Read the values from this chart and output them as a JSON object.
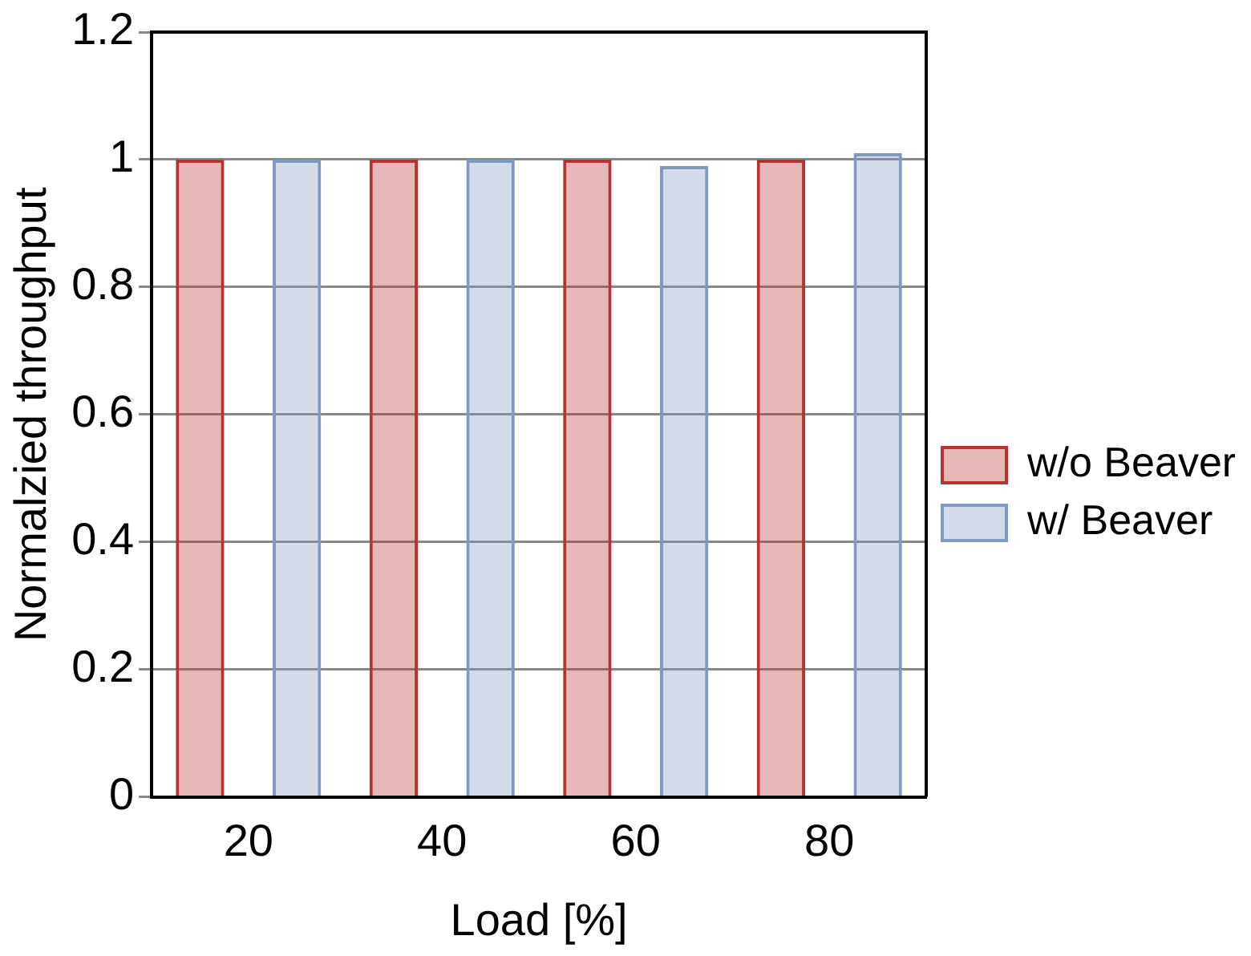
{
  "chart_data": {
    "type": "bar",
    "xlabel": "Load [%]",
    "ylabel": "Normalzied throughput",
    "categories": [
      "20",
      "40",
      "60",
      "80"
    ],
    "series": [
      {
        "name": "w/o Beaver",
        "color": "#b83232",
        "values": [
          1,
          1,
          1,
          1
        ]
      },
      {
        "name": "w/ Beaver",
        "color": "#8098c4",
        "values": [
          1,
          1,
          0.99,
          1.01
        ]
      }
    ],
    "ylim": [
      0,
      1.2
    ],
    "yticks": [
      0,
      0.2,
      0.4,
      0.6,
      0.8,
      1,
      1.2
    ],
    "grid": "y",
    "legend": "right"
  }
}
